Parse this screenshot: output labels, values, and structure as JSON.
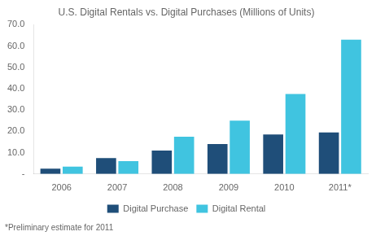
{
  "chart_data": {
    "type": "bar",
    "title": "U.S. Digital Rentals vs. Digital Purchases (Millions of Units)",
    "categories": [
      "2006",
      "2007",
      "2008",
      "2009",
      "2010",
      "2011*"
    ],
    "series": [
      {
        "name": "Digital Purchase",
        "color": "#1F4E79",
        "values": [
          2.5,
          7.5,
          11.0,
          14.0,
          18.5,
          19.5
        ]
      },
      {
        "name": "Digital Rental",
        "color": "#40C4E0",
        "values": [
          3.5,
          6.0,
          17.5,
          25.0,
          37.5,
          63.0
        ]
      }
    ],
    "ylim": [
      0,
      70
    ],
    "yticks": [
      {
        "value": 0,
        "label": "-"
      },
      {
        "value": 10,
        "label": "10.0"
      },
      {
        "value": 20,
        "label": "20.0"
      },
      {
        "value": 30,
        "label": "30.0"
      },
      {
        "value": 40,
        "label": "40.0"
      },
      {
        "value": 50,
        "label": "50.0"
      },
      {
        "value": 60,
        "label": "60.0"
      },
      {
        "value": 70,
        "label": "70.0"
      }
    ],
    "grid": false,
    "legend": "bottom",
    "annotations": [
      "*Preliminary estimate for 2011"
    ]
  }
}
